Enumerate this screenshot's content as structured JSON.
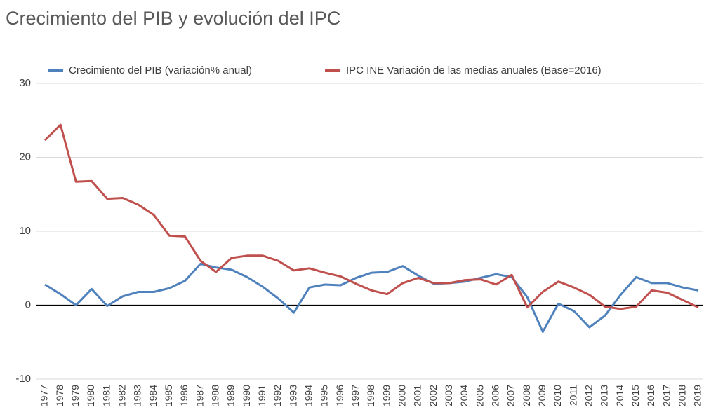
{
  "chart_data": {
    "type": "line",
    "title": "Crecimiento del PIB y evolución del IPC",
    "categories": [
      "1977",
      "1978",
      "1979",
      "1980",
      "1981",
      "1982",
      "1983",
      "1984",
      "1985",
      "1986",
      "1987",
      "1988",
      "1989",
      "1990",
      "1991",
      "1992",
      "1993",
      "1994",
      "1995",
      "1996",
      "1997",
      "1998",
      "1999",
      "2000",
      "2001",
      "2002",
      "2003",
      "2004",
      "2005",
      "2006",
      "2007",
      "2008",
      "2009",
      "2010",
      "2011",
      "2012",
      "2013",
      "2014",
      "2015",
      "2016",
      "2017",
      "2018",
      "2019"
    ],
    "series": [
      {
        "name": "Crecimiento del PIB (variación% anual)",
        "color": "#4f81bd",
        "values": [
          2.8,
          1.5,
          0.0,
          2.2,
          -0.1,
          1.2,
          1.8,
          1.8,
          2.3,
          3.3,
          5.6,
          5.1,
          4.8,
          3.8,
          2.5,
          0.9,
          -1.0,
          2.4,
          2.8,
          2.7,
          3.7,
          4.4,
          4.5,
          5.3,
          4.0,
          2.9,
          3.0,
          3.2,
          3.7,
          4.2,
          3.8,
          1.1,
          -3.6,
          0.2,
          -0.8,
          -3.0,
          -1.4,
          1.4,
          3.8,
          3.0,
          3.0,
          2.4,
          2.0
        ]
      },
      {
        "name": "IPC INE Variación de las medias anuales (Base=2016)",
        "color": "#c0504d",
        "values": [
          22.3,
          24.4,
          16.7,
          16.8,
          14.4,
          14.5,
          13.6,
          12.2,
          9.4,
          9.3,
          6.0,
          4.5,
          6.4,
          6.7,
          6.7,
          6.0,
          4.7,
          5.0,
          4.4,
          3.9,
          2.9,
          2.0,
          1.5,
          3.0,
          3.7,
          3.0,
          3.0,
          3.4,
          3.5,
          2.8,
          4.1,
          -0.3,
          1.8,
          3.2,
          2.4,
          1.4,
          -0.2,
          -0.5,
          -0.2,
          2.0,
          1.7,
          0.7,
          -0.3
        ]
      }
    ],
    "ylim": [
      -10,
      30
    ],
    "yticks": [
      -10,
      0,
      10,
      20,
      30
    ],
    "grid": true
  }
}
